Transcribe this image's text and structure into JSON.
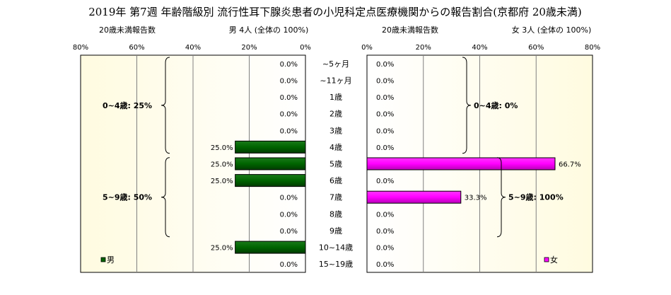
{
  "chart_data": {
    "type": "bar",
    "title": "2019年 第7週 年齢階級別 流行性耳下腺炎患者の小児科定点医療機関からの報告割合(京都府 20歳未満)",
    "categories": [
      "~5ヶ月",
      "~11ヶ月",
      "1歳",
      "2歳",
      "3歳",
      "4歳",
      "5歳",
      "6歳",
      "7歳",
      "8歳",
      "9歳",
      "10~14歳",
      "15~19歳"
    ],
    "xlim": [
      0,
      80
    ],
    "ticks": [
      "80%",
      "60%",
      "40%",
      "20%",
      "0%"
    ],
    "ticks_right": [
      "0%",
      "20%",
      "40%",
      "60%",
      "80%"
    ],
    "panels": [
      {
        "side": "left",
        "header_left": "20歳未満報告数",
        "header_right": "男 4人 (全体の 100%)",
        "series": [
          {
            "name": "男",
            "values": [
              0,
              0,
              0,
              0,
              0,
              25,
              25,
              25,
              0,
              0,
              0,
              25,
              0
            ],
            "color": "#006400"
          }
        ],
        "labels": [
          "0.0%",
          "0.0%",
          "0.0%",
          "0.0%",
          "0.0%",
          "25.0%",
          "25.0%",
          "25.0%",
          "0.0%",
          "0.0%",
          "0.0%",
          "25.0%",
          "0.0%"
        ],
        "brackets": [
          {
            "text": "0~4歳: 25%",
            "from": 0,
            "to": 5
          },
          {
            "text": "5~9歳: 50%",
            "from": 6,
            "to": 10
          }
        ]
      },
      {
        "side": "right",
        "header_left": "20歳未満報告数",
        "header_right": "女 3人 (全体の 100%)",
        "series": [
          {
            "name": "女",
            "values": [
              0,
              0,
              0,
              0,
              0,
              0,
              66.7,
              0,
              33.3,
              0,
              0,
              0,
              0
            ],
            "color": "#ff00ff"
          }
        ],
        "labels": [
          "0.0%",
          "0.0%",
          "0.0%",
          "0.0%",
          "0.0%",
          "0.0%",
          "66.7%",
          "0.0%",
          "33.3%",
          "0.0%",
          "0.0%",
          "0.0%",
          "0.0%"
        ],
        "brackets": [
          {
            "text": "0~4歳: 0%",
            "from": 0,
            "to": 5
          },
          {
            "text": "5~9歳: 100%",
            "from": 6,
            "to": 10
          }
        ]
      }
    ]
  }
}
